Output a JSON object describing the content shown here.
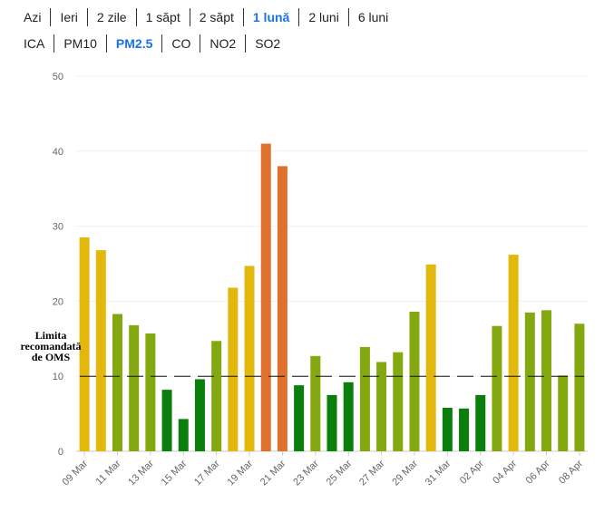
{
  "period_tabs": [
    {
      "label": "Azi",
      "active": false
    },
    {
      "label": "Ieri",
      "active": false
    },
    {
      "label": "2 zile",
      "active": false
    },
    {
      "label": "1 săpt",
      "active": false
    },
    {
      "label": "2 săpt",
      "active": false
    },
    {
      "label": "1 lună",
      "active": true
    },
    {
      "label": "2 luni",
      "active": false
    },
    {
      "label": "6 luni",
      "active": false
    }
  ],
  "pollutant_tabs": [
    {
      "label": "ICA",
      "active": false
    },
    {
      "label": "PM10",
      "active": false
    },
    {
      "label": "PM2.5",
      "active": true
    },
    {
      "label": "CO",
      "active": false
    },
    {
      "label": "NO2",
      "active": false
    },
    {
      "label": "SO2",
      "active": false
    }
  ],
  "colors": {
    "active_tab": "#1a73e8",
    "very_good": "#0a7f0c",
    "good": "#84a80f",
    "moderate": "#e3b80c",
    "poor": "#e0702e",
    "threshold_line": "#111111"
  },
  "chart_data": {
    "type": "bar",
    "ylim": [
      0,
      50
    ],
    "yticks": [
      0,
      10,
      20,
      30,
      40,
      50
    ],
    "grid": true,
    "categories": [
      "09 Mar",
      "10 Mar",
      "11 Mar",
      "12 Mar",
      "13 Mar",
      "14 Mar",
      "15 Mar",
      "16 Mar",
      "17 Mar",
      "18 Mar",
      "19 Mar",
      "20 Mar",
      "21 Mar",
      "22 Mar",
      "23 Mar",
      "24 Mar",
      "25 Mar",
      "26 Mar",
      "27 Mar",
      "28 Mar",
      "29 Mar",
      "30 Mar",
      "31 Mar",
      "01 Apr",
      "02 Apr",
      "03 Apr",
      "04 Apr",
      "05 Apr",
      "06 Apr",
      "07 Apr",
      "08 Apr"
    ],
    "xtick_labels": [
      "09 Mar",
      "11 Mar",
      "13 Mar",
      "15 Mar",
      "17 Mar",
      "19 Mar",
      "21 Mar",
      "23 Mar",
      "25 Mar",
      "27 Mar",
      "29 Mar",
      "31 Mar",
      "02 Apr",
      "04 Apr",
      "06 Apr",
      "08 Apr"
    ],
    "values": [
      28.5,
      26.8,
      18.3,
      16.8,
      15.7,
      8.2,
      4.3,
      9.6,
      14.7,
      21.8,
      24.7,
      41.0,
      38.0,
      8.8,
      12.7,
      7.5,
      9.2,
      13.9,
      11.9,
      13.2,
      18.6,
      24.9,
      5.8,
      5.7,
      7.5,
      16.7,
      26.2,
      18.5,
      18.8,
      10.1,
      17.0
    ],
    "bar_levels": [
      "moderate",
      "moderate",
      "good",
      "good",
      "good",
      "very_good",
      "very_good",
      "very_good",
      "good",
      "moderate",
      "moderate",
      "poor",
      "poor",
      "very_good",
      "good",
      "very_good",
      "very_good",
      "good",
      "good",
      "good",
      "good",
      "moderate",
      "very_good",
      "very_good",
      "very_good",
      "good",
      "moderate",
      "good",
      "good",
      "good",
      "good"
    ],
    "threshold": {
      "value": 10,
      "label_lines": [
        "Limita",
        "recomandată",
        "de OMS"
      ]
    }
  }
}
